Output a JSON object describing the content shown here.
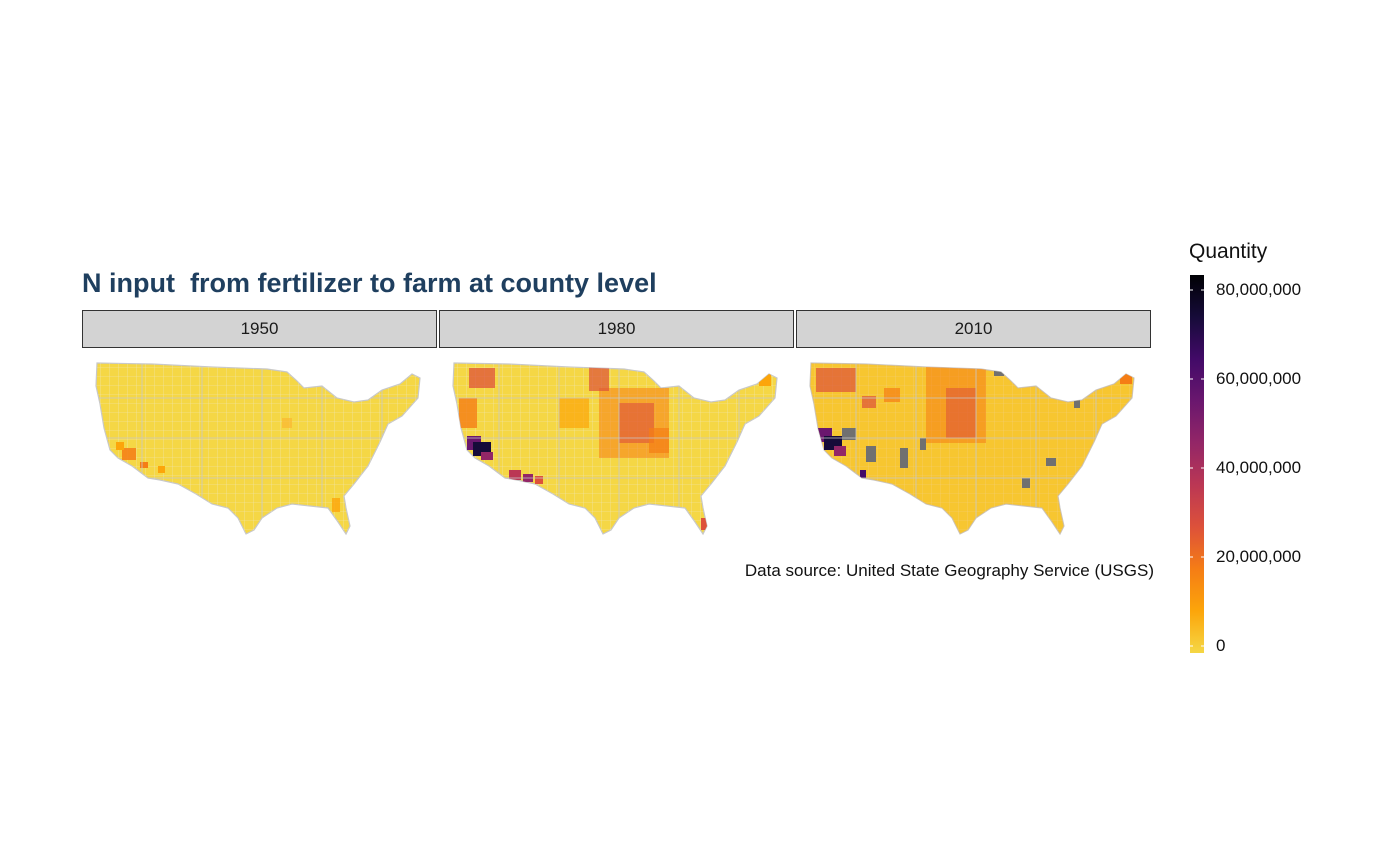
{
  "title": "N input  from fertilizer to farm at county level",
  "panels": [
    {
      "label": "1950"
    },
    {
      "label": "1980"
    },
    {
      "label": "2010"
    }
  ],
  "caption": "Data source: United State Geography Service (USGS)",
  "legend": {
    "title": "Quantity",
    "ticks": [
      "80,000,000",
      "60,000,000",
      "40,000,000",
      "20,000,000",
      "0"
    ],
    "colors": [
      "#f5d745",
      "#fca50a",
      "#f57d15",
      "#dd513a",
      "#bb3754",
      "#932667",
      "#6a176e",
      "#420a68",
      "#160b39",
      "#000004"
    ]
  },
  "colors": {
    "title": "#1f3f5f",
    "strip_fill": "#d3d3d3",
    "base_fill": "#f5d745",
    "county_border": "#c8c8c8",
    "na_fill": "#707070"
  }
}
